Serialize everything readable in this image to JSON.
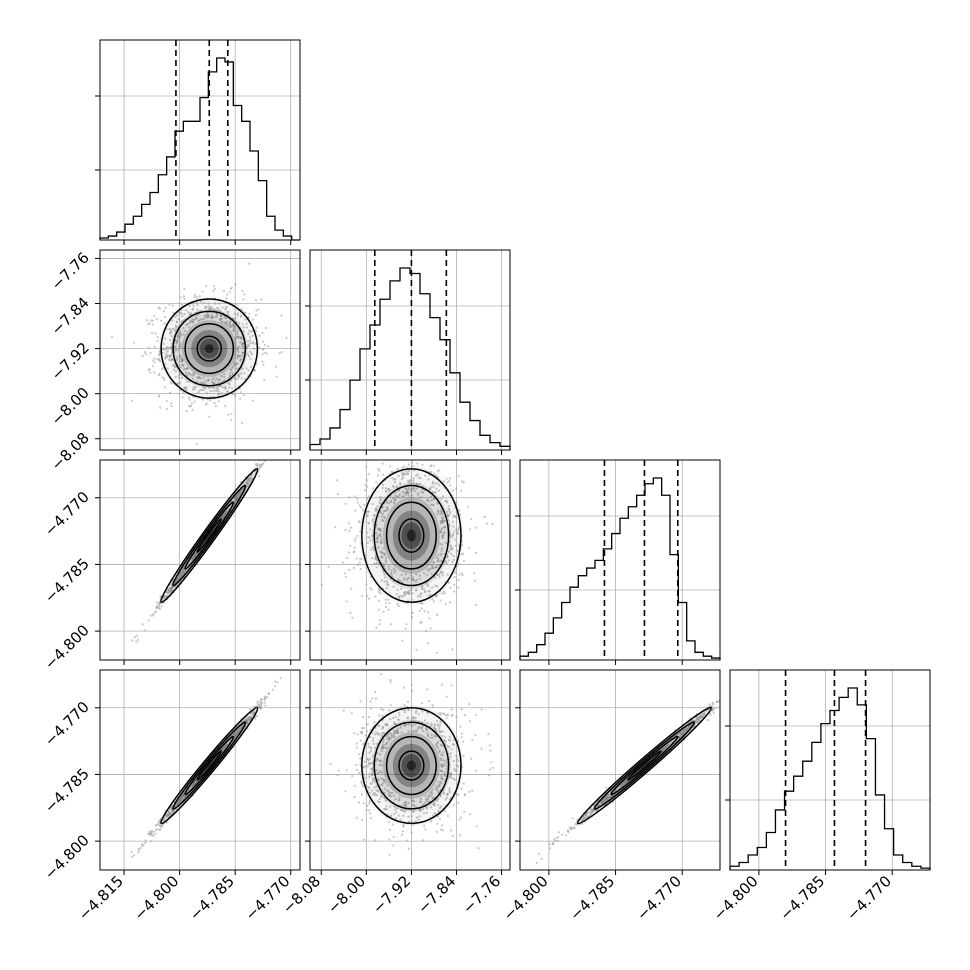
{
  "chart_data": {
    "type": "corner",
    "n_params": 4,
    "parameters": [
      {
        "ticks": [
          -4.815,
          -4.8,
          -4.785,
          -4.77
        ],
        "tick_labels": [
          "−4.815",
          "−4.800",
          "−4.785",
          "−4.770"
        ],
        "range": [
          -4.8215,
          -4.7675
        ],
        "quantiles": [
          -4.801,
          -4.792,
          -4.787
        ],
        "median": -4.792
      },
      {
        "ticks": [
          -8.08,
          -8.0,
          -7.92,
          -7.84,
          -7.76
        ],
        "tick_labels": [
          "−8.08",
          "−8.00",
          "−7.92",
          "−7.84",
          "−7.76"
        ],
        "range": [
          -8.1,
          -7.745
        ],
        "quantiles": [
          -7.985,
          -7.92,
          -7.858
        ],
        "median": -7.92
      },
      {
        "ticks": [
          -4.8,
          -4.785,
          -4.77
        ],
        "tick_labels": [
          "−4.800",
          "−4.785",
          "−4.770"
        ],
        "range": [
          -4.8065,
          -4.7615
        ],
        "quantiles": [
          -4.7875,
          -4.7785,
          -4.771
        ],
        "median": -4.7785
      },
      {
        "ticks": [
          -4.8,
          -4.785,
          -4.77
        ],
        "tick_labels": [
          "−4.800",
          "−4.785",
          "−4.770"
        ],
        "range": [
          -4.8065,
          -4.7615
        ],
        "quantiles": [
          -4.794,
          -4.783,
          -4.776
        ],
        "median": -4.783
      }
    ],
    "histograms": [
      {
        "param": 0,
        "counts": [
          1,
          2,
          4,
          8,
          12,
          18,
          24,
          33,
          42,
          55,
          60,
          60,
          72,
          85,
          92,
          90,
          68,
          60,
          45,
          30,
          12,
          5,
          2,
          0
        ]
      },
      {
        "param": 1,
        "counts": [
          3,
          6,
          12,
          22,
          38,
          55,
          68,
          82,
          92,
          99,
          96,
          85,
          72,
          60,
          42,
          26,
          16,
          8,
          4,
          2
        ]
      },
      {
        "param": 2,
        "counts": [
          2,
          4,
          8,
          14,
          22,
          30,
          38,
          44,
          48,
          52,
          58,
          66,
          74,
          80,
          86,
          92,
          95,
          86,
          55,
          30,
          10,
          4,
          2,
          1
        ]
      },
      {
        "param": 3,
        "counts": [
          2,
          4,
          8,
          12,
          20,
          32,
          42,
          50,
          58,
          68,
          78,
          85,
          92,
          97,
          88,
          70,
          40,
          22,
          8,
          4,
          2,
          1
        ]
      }
    ],
    "pairs": [
      {
        "x_param": 0,
        "y_param": 1,
        "mean": [
          -4.792,
          -7.92
        ],
        "sd": [
          0.0065,
          0.044
        ],
        "corr": 0
      },
      {
        "x_param": 0,
        "y_param": 2,
        "mean": [
          -4.792,
          -4.7785
        ],
        "sd": [
          0.0065,
          0.0075
        ],
        "corr": 0.995
      },
      {
        "x_param": 1,
        "y_param": 2,
        "mean": [
          -7.92,
          -4.7785
        ],
        "sd": [
          0.044,
          0.0075
        ],
        "corr": 0
      },
      {
        "x_param": 0,
        "y_param": 3,
        "mean": [
          -4.792,
          -4.783
        ],
        "sd": [
          0.0065,
          0.0065
        ],
        "corr": 0.995
      },
      {
        "x_param": 1,
        "y_param": 3,
        "mean": [
          -7.92,
          -4.783
        ],
        "sd": [
          0.044,
          0.0065
        ],
        "corr": 0
      },
      {
        "x_param": 2,
        "y_param": 3,
        "mean": [
          -4.7785,
          -4.783
        ],
        "sd": [
          0.0075,
          0.0065
        ],
        "corr": 0.995
      }
    ],
    "contour_levels_sigma": [
      0.5,
      1.0,
      1.5,
      2.0
    ],
    "grid": true,
    "colors": {
      "line": "#000000",
      "grid": "#b0b0b0",
      "points": "#9a9a9a",
      "density": "#000000"
    },
    "title": "",
    "xlabel": "",
    "ylabel": ""
  }
}
